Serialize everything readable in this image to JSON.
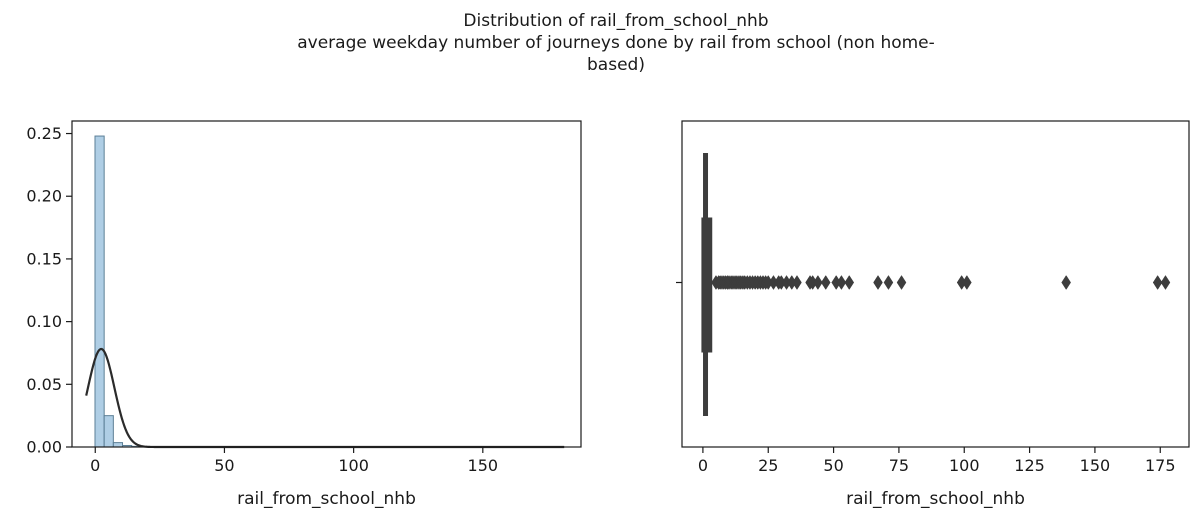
{
  "figure": {
    "title_lines": [
      "Distribution of rail_from_school_nhb",
      "average weekday number of journeys done by rail from school (non home-",
      "based)"
    ]
  },
  "chart_data": [
    {
      "type": "histogram",
      "xlabel": "rail_from_school_nhb",
      "ylabel": "",
      "xlim": [
        -9,
        188
      ],
      "ylim": [
        0,
        0.26
      ],
      "x_ticks": [
        0,
        50,
        100,
        150
      ],
      "y_ticks": [
        0.0,
        0.05,
        0.1,
        0.15,
        0.2,
        0.25
      ],
      "y_tick_labels": [
        "0.00",
        "0.05",
        "0.10",
        "0.15",
        "0.20",
        "0.25"
      ],
      "bin_width": 3.55,
      "bins": [
        {
          "start": -0.1,
          "density": 0.248
        },
        {
          "start": 3.45,
          "density": 0.025
        },
        {
          "start": 7.0,
          "density": 0.0035
        },
        {
          "start": 10.55,
          "density": 0.0012
        },
        {
          "start": 14.1,
          "density": 0.0005
        },
        {
          "start": 17.65,
          "density": 0.0003
        },
        {
          "start": 21.2,
          "density": 0.0002
        },
        {
          "start": 24.75,
          "density": 0.0001
        }
      ],
      "fit_curve": {
        "type": "normal",
        "mean": 2.3,
        "sd": 5.1,
        "x_range": [
          -3.5,
          181.5
        ]
      },
      "bar_color": "#a6c9e2",
      "curve_color": "#2b2b2b"
    },
    {
      "type": "boxplot",
      "xlabel": "rail_from_school_nhb",
      "ylabel": "",
      "xlim": [
        -8,
        186
      ],
      "x_ticks": [
        0,
        25,
        50,
        75,
        100,
        125,
        150,
        175
      ],
      "box": {
        "q1": 0.0,
        "median": 1.0,
        "q3": 3.0
      },
      "whiskers": [
        0.0,
        4.8
      ],
      "outliers": [
        5,
        6,
        6.6,
        7.3,
        8,
        8.7,
        9.4,
        10,
        10.8,
        11.5,
        12.3,
        13,
        13.8,
        14.5,
        15.3,
        16,
        17,
        18,
        19,
        20,
        21,
        22,
        23,
        24,
        25,
        27,
        29,
        30,
        32,
        34,
        36,
        41,
        42,
        44,
        47,
        51,
        53,
        56,
        67,
        71,
        76,
        99,
        101,
        139,
        174,
        177
      ],
      "box_color": "#3d3d3d"
    }
  ]
}
